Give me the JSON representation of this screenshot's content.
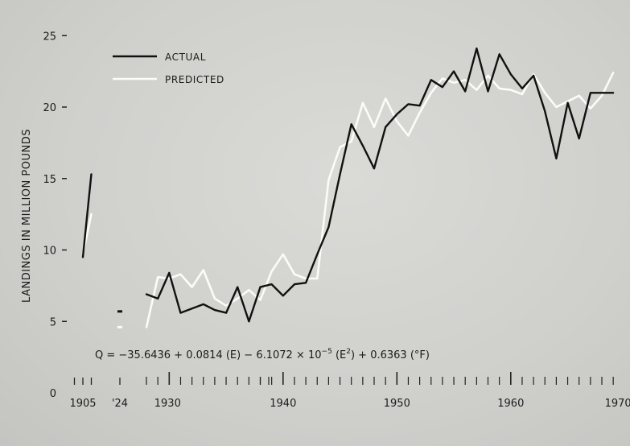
{
  "chart_data": {
    "type": "line",
    "ylabel": "LANDINGS IN MILLION POUNDS",
    "xlabel": "",
    "ylim": [
      0,
      25
    ],
    "y_ticks": [
      0,
      5,
      10,
      15,
      20,
      25
    ],
    "x_tick_labels": [
      "1905",
      "'24",
      "1930",
      "1940",
      "1950",
      "1960",
      "1970"
    ],
    "legend": {
      "position": "top-left",
      "entries": [
        "ACTUAL",
        "PREDICTED"
      ]
    },
    "equation_parts": {
      "lhs": "Q = −35.6436 + 0.0814 (E) − 6.1072 × 10",
      "exp": "−5",
      "mid": " (E",
      "sq": "2",
      "rhs": ") + 0.6363 (°F)"
    },
    "series": [
      {
        "name": "ACTUAL",
        "color": "#111111",
        "segments": [
          {
            "x": [
              1905,
              1906
            ],
            "y": [
              9.5,
              15.3
            ]
          },
          {
            "x": [
              1928,
              1929,
              1930,
              1931,
              1932,
              1933,
              1934,
              1935,
              1936,
              1937,
              1938,
              1939,
              1940,
              1941,
              1942,
              1943,
              1944,
              1945,
              1946,
              1947,
              1948,
              1949,
              1950,
              1951,
              1952,
              1953,
              1954,
              1955,
              1956,
              1957,
              1958,
              1959,
              1960,
              1961,
              1962,
              1963,
              1964,
              1965,
              1966,
              1967,
              1968,
              1969
            ],
            "y": [
              6.9,
              6.6,
              8.4,
              5.6,
              5.9,
              6.2,
              5.8,
              5.6,
              7.4,
              5.0,
              7.4,
              7.6,
              6.8,
              7.6,
              7.7,
              9.7,
              11.6,
              15.3,
              18.8,
              17.3,
              15.7,
              18.6,
              19.5,
              20.2,
              20.1,
              21.9,
              21.4,
              22.5,
              21.1,
              24.1,
              21.1,
              23.7,
              22.3,
              21.3,
              22.2,
              19.7,
              16.4,
              20.3,
              17.8,
              21.0,
              21.0,
              21.0
            ]
          }
        ],
        "points": [
          {
            "x": 1924,
            "y": 5.7
          }
        ]
      },
      {
        "name": "PREDICTED",
        "color": "#fbfbf8",
        "segments": [
          {
            "x": [
              1905,
              1906
            ],
            "y": [
              9.7,
              12.5
            ]
          },
          {
            "x": [
              1928,
              1929,
              1930,
              1931,
              1932,
              1933,
              1934,
              1935,
              1936,
              1937,
              1938,
              1939,
              1940,
              1941,
              1942,
              1943,
              1944,
              1945,
              1946,
              1947,
              1948,
              1949,
              1950,
              1951,
              1952,
              1953,
              1954,
              1955,
              1956,
              1957,
              1958,
              1959,
              1960,
              1961,
              1962,
              1963,
              1964,
              1965,
              1966,
              1967,
              1968,
              1969
            ],
            "y": [
              4.6,
              8.1,
              8.0,
              8.3,
              7.4,
              8.6,
              6.6,
              6.1,
              6.6,
              7.2,
              6.5,
              8.5,
              9.7,
              8.3,
              8.0,
              8.0,
              14.9,
              17.2,
              17.6,
              20.3,
              18.6,
              20.6,
              19.0,
              18.0,
              19.6,
              21.0,
              22.0,
              21.7,
              21.9,
              21.2,
              22.2,
              21.3,
              21.2,
              20.9,
              22.3,
              21.0,
              20.0,
              20.4,
              20.8,
              19.9,
              20.8,
              22.4
            ]
          }
        ],
        "points": [
          {
            "x": 1924,
            "y": 4.6
          }
        ]
      }
    ]
  }
}
